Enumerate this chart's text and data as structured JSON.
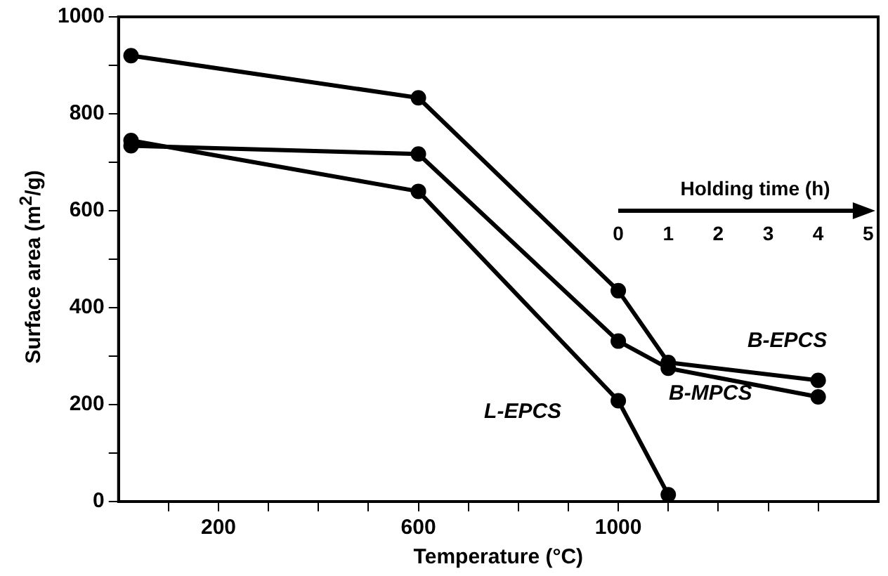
{
  "chart_data": {
    "type": "line",
    "xlabel": "Temperature (°C)",
    "ylabel": "Surface area (m$^{2}$/g)",
    "x2label": "Holding time (h)",
    "x2lim": [
      -10,
      5.2
    ],
    "x2ticks": [
      0,
      1,
      2,
      3,
      4,
      5
    ],
    "xlim": [
      0,
      1520
    ],
    "xticks": [
      {
        "value": 100,
        "label": null
      },
      200,
      {
        "value": 300,
        "label": null
      },
      {
        "value": 400,
        "label": null
      },
      {
        "value": 500,
        "label": null
      },
      600,
      {
        "value": 700,
        "label": null
      },
      {
        "value": 800,
        "label": null
      },
      {
        "value": 900,
        "label": null
      },
      1000,
      {
        "value": 1100,
        "label": null
      },
      {
        "value": 1200,
        "label": null
      },
      {
        "value": 1300,
        "label": null
      },
      {
        "value": 1400,
        "label": null
      }
    ],
    "ylim": [
      0,
      1000
    ],
    "yticks": [
      0,
      {
        "value": 100,
        "label": null
      },
      200,
      {
        "value": 300,
        "label": null
      },
      400,
      {
        "value": 500,
        "label": null
      },
      600,
      {
        "value": 700,
        "label": null
      },
      800,
      {
        "value": 900,
        "label": null
      },
      1000
    ],
    "x": [
      25,
      600,
      1000,
      1100,
      1400
    ],
    "series": [
      {
        "name": "B-EPCS",
        "color": "#000000",
        "values": [
          920,
          833,
          435,
          287,
          250
        ]
      },
      {
        "name": "B-MPCS",
        "color": "#000000",
        "values": [
          734,
          717,
          331,
          275,
          216
        ]
      },
      {
        "name": "L-EPCS",
        "color": "#000000",
        "x": [
          25,
          600,
          1000,
          1100
        ],
        "values": [
          745,
          640,
          208,
          14
        ]
      }
    ],
    "marker": "circle",
    "line_style": "solid",
    "grid": false,
    "legend": false
  }
}
